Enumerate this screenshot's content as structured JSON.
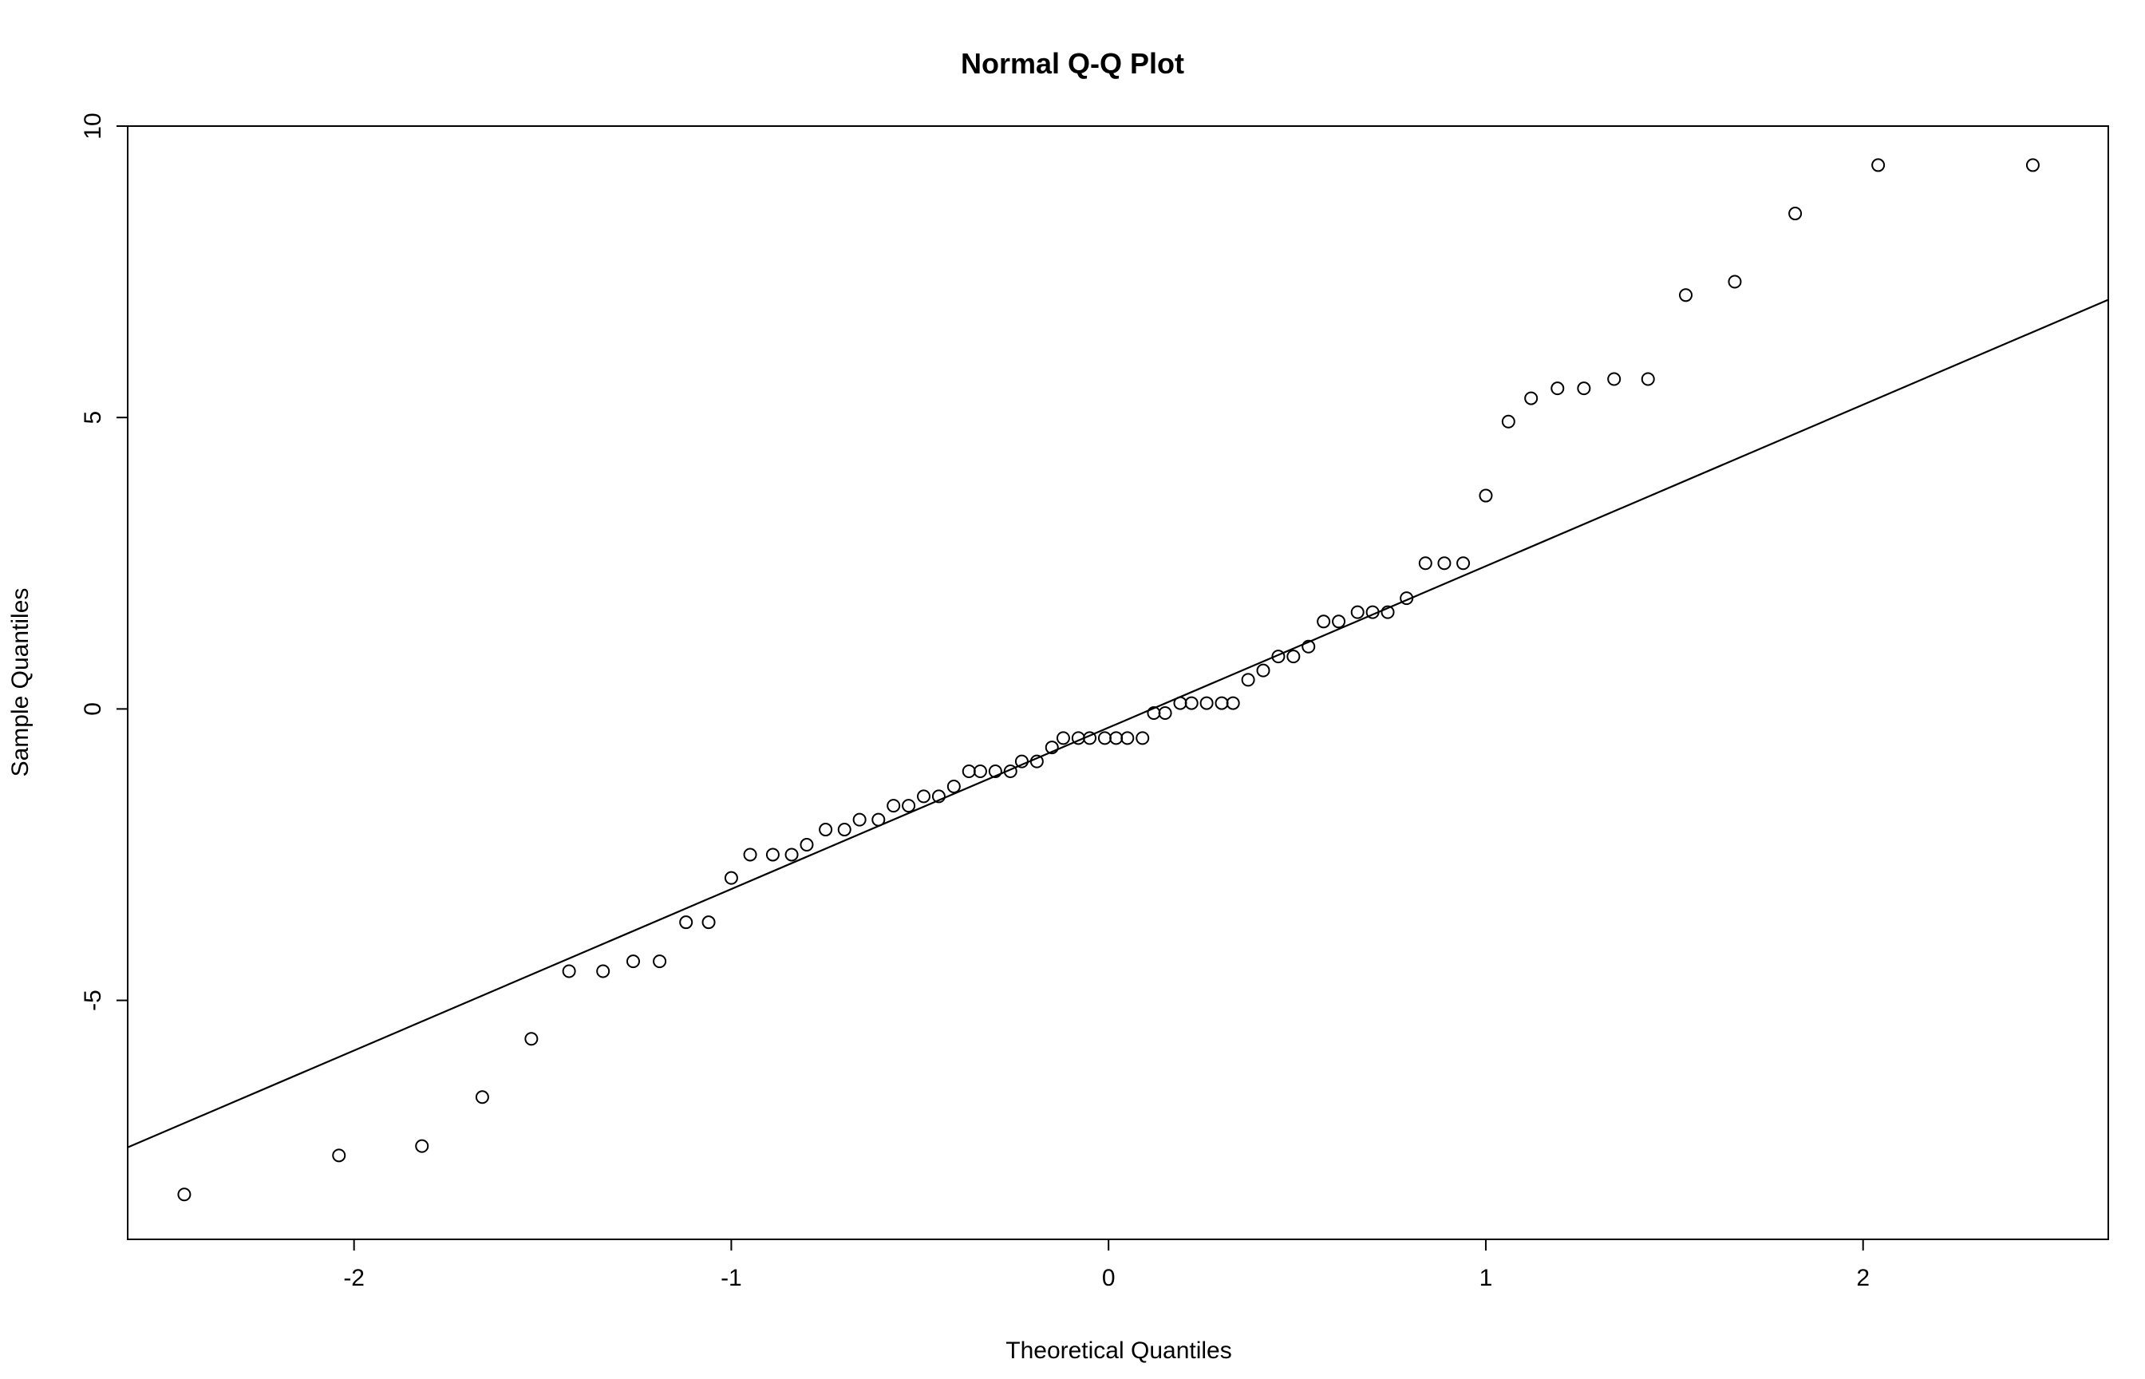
{
  "chart_data": {
    "type": "scatter",
    "title": "Normal Q-Q Plot",
    "xlabel": "Theoretical Quantiles",
    "ylabel": "Sample Quantiles",
    "xlim": [
      -2.6,
      2.65
    ],
    "ylim": [
      -9.1,
      10.0
    ],
    "x_ticks": [
      -2,
      -1,
      0,
      1,
      2
    ],
    "y_ticks": [
      -5,
      0,
      5,
      10
    ],
    "x_tick_labels": [
      "-2",
      "-1",
      "0",
      "1",
      "2"
    ],
    "y_tick_labels": [
      "-5",
      "0",
      "5",
      "10"
    ],
    "grid": false,
    "reference_line": {
      "intercept": -0.32,
      "slope": 2.77
    },
    "points": [
      [
        -2.45,
        -8.33
      ],
      [
        -2.04,
        -7.66
      ],
      [
        -1.82,
        -7.5
      ],
      [
        -1.66,
        -6.66
      ],
      [
        -1.53,
        -5.66
      ],
      [
        -1.43,
        -4.5
      ],
      [
        -1.34,
        -4.5
      ],
      [
        -1.26,
        -4.33
      ],
      [
        -1.19,
        -4.33
      ],
      [
        -1.12,
        -3.66
      ],
      [
        -1.06,
        -3.66
      ],
      [
        -1.0,
        -2.9
      ],
      [
        -0.95,
        -2.5
      ],
      [
        -0.89,
        -2.5
      ],
      [
        -0.84,
        -2.5
      ],
      [
        -0.8,
        -2.33
      ],
      [
        -0.75,
        -2.07
      ],
      [
        -0.7,
        -2.07
      ],
      [
        -0.66,
        -1.9
      ],
      [
        -0.61,
        -1.9
      ],
      [
        -0.57,
        -1.66
      ],
      [
        -0.53,
        -1.66
      ],
      [
        -0.49,
        -1.5
      ],
      [
        -0.45,
        -1.5
      ],
      [
        -0.41,
        -1.33
      ],
      [
        -0.37,
        -1.07
      ],
      [
        -0.34,
        -1.07
      ],
      [
        -0.3,
        -1.07
      ],
      [
        -0.26,
        -1.07
      ],
      [
        -0.23,
        -0.9
      ],
      [
        -0.19,
        -0.9
      ],
      [
        -0.15,
        -0.66
      ],
      [
        -0.12,
        -0.5
      ],
      [
        -0.08,
        -0.5
      ],
      [
        -0.05,
        -0.5
      ],
      [
        -0.01,
        -0.5
      ],
      [
        0.02,
        -0.5
      ],
      [
        0.05,
        -0.5
      ],
      [
        0.09,
        -0.5
      ],
      [
        0.12,
        -0.07
      ],
      [
        0.15,
        -0.07
      ],
      [
        0.19,
        0.1
      ],
      [
        0.22,
        0.1
      ],
      [
        0.26,
        0.1
      ],
      [
        0.3,
        0.1
      ],
      [
        0.33,
        0.1
      ],
      [
        0.37,
        0.5
      ],
      [
        0.41,
        0.66
      ],
      [
        0.45,
        0.9
      ],
      [
        0.49,
        0.9
      ],
      [
        0.53,
        1.07
      ],
      [
        0.57,
        1.5
      ],
      [
        0.61,
        1.5
      ],
      [
        0.66,
        1.66
      ],
      [
        0.7,
        1.66
      ],
      [
        0.74,
        1.66
      ],
      [
        0.79,
        1.9
      ],
      [
        0.84,
        2.5
      ],
      [
        0.89,
        2.5
      ],
      [
        0.94,
        2.5
      ],
      [
        1.0,
        3.66
      ],
      [
        1.06,
        4.93
      ],
      [
        1.12,
        5.33
      ],
      [
        1.19,
        5.5
      ],
      [
        1.26,
        5.5
      ],
      [
        1.34,
        5.66
      ],
      [
        1.43,
        5.66
      ],
      [
        1.53,
        7.1
      ],
      [
        1.66,
        7.33
      ],
      [
        1.82,
        8.5
      ],
      [
        2.04,
        9.33
      ],
      [
        2.45,
        9.33
      ]
    ]
  }
}
